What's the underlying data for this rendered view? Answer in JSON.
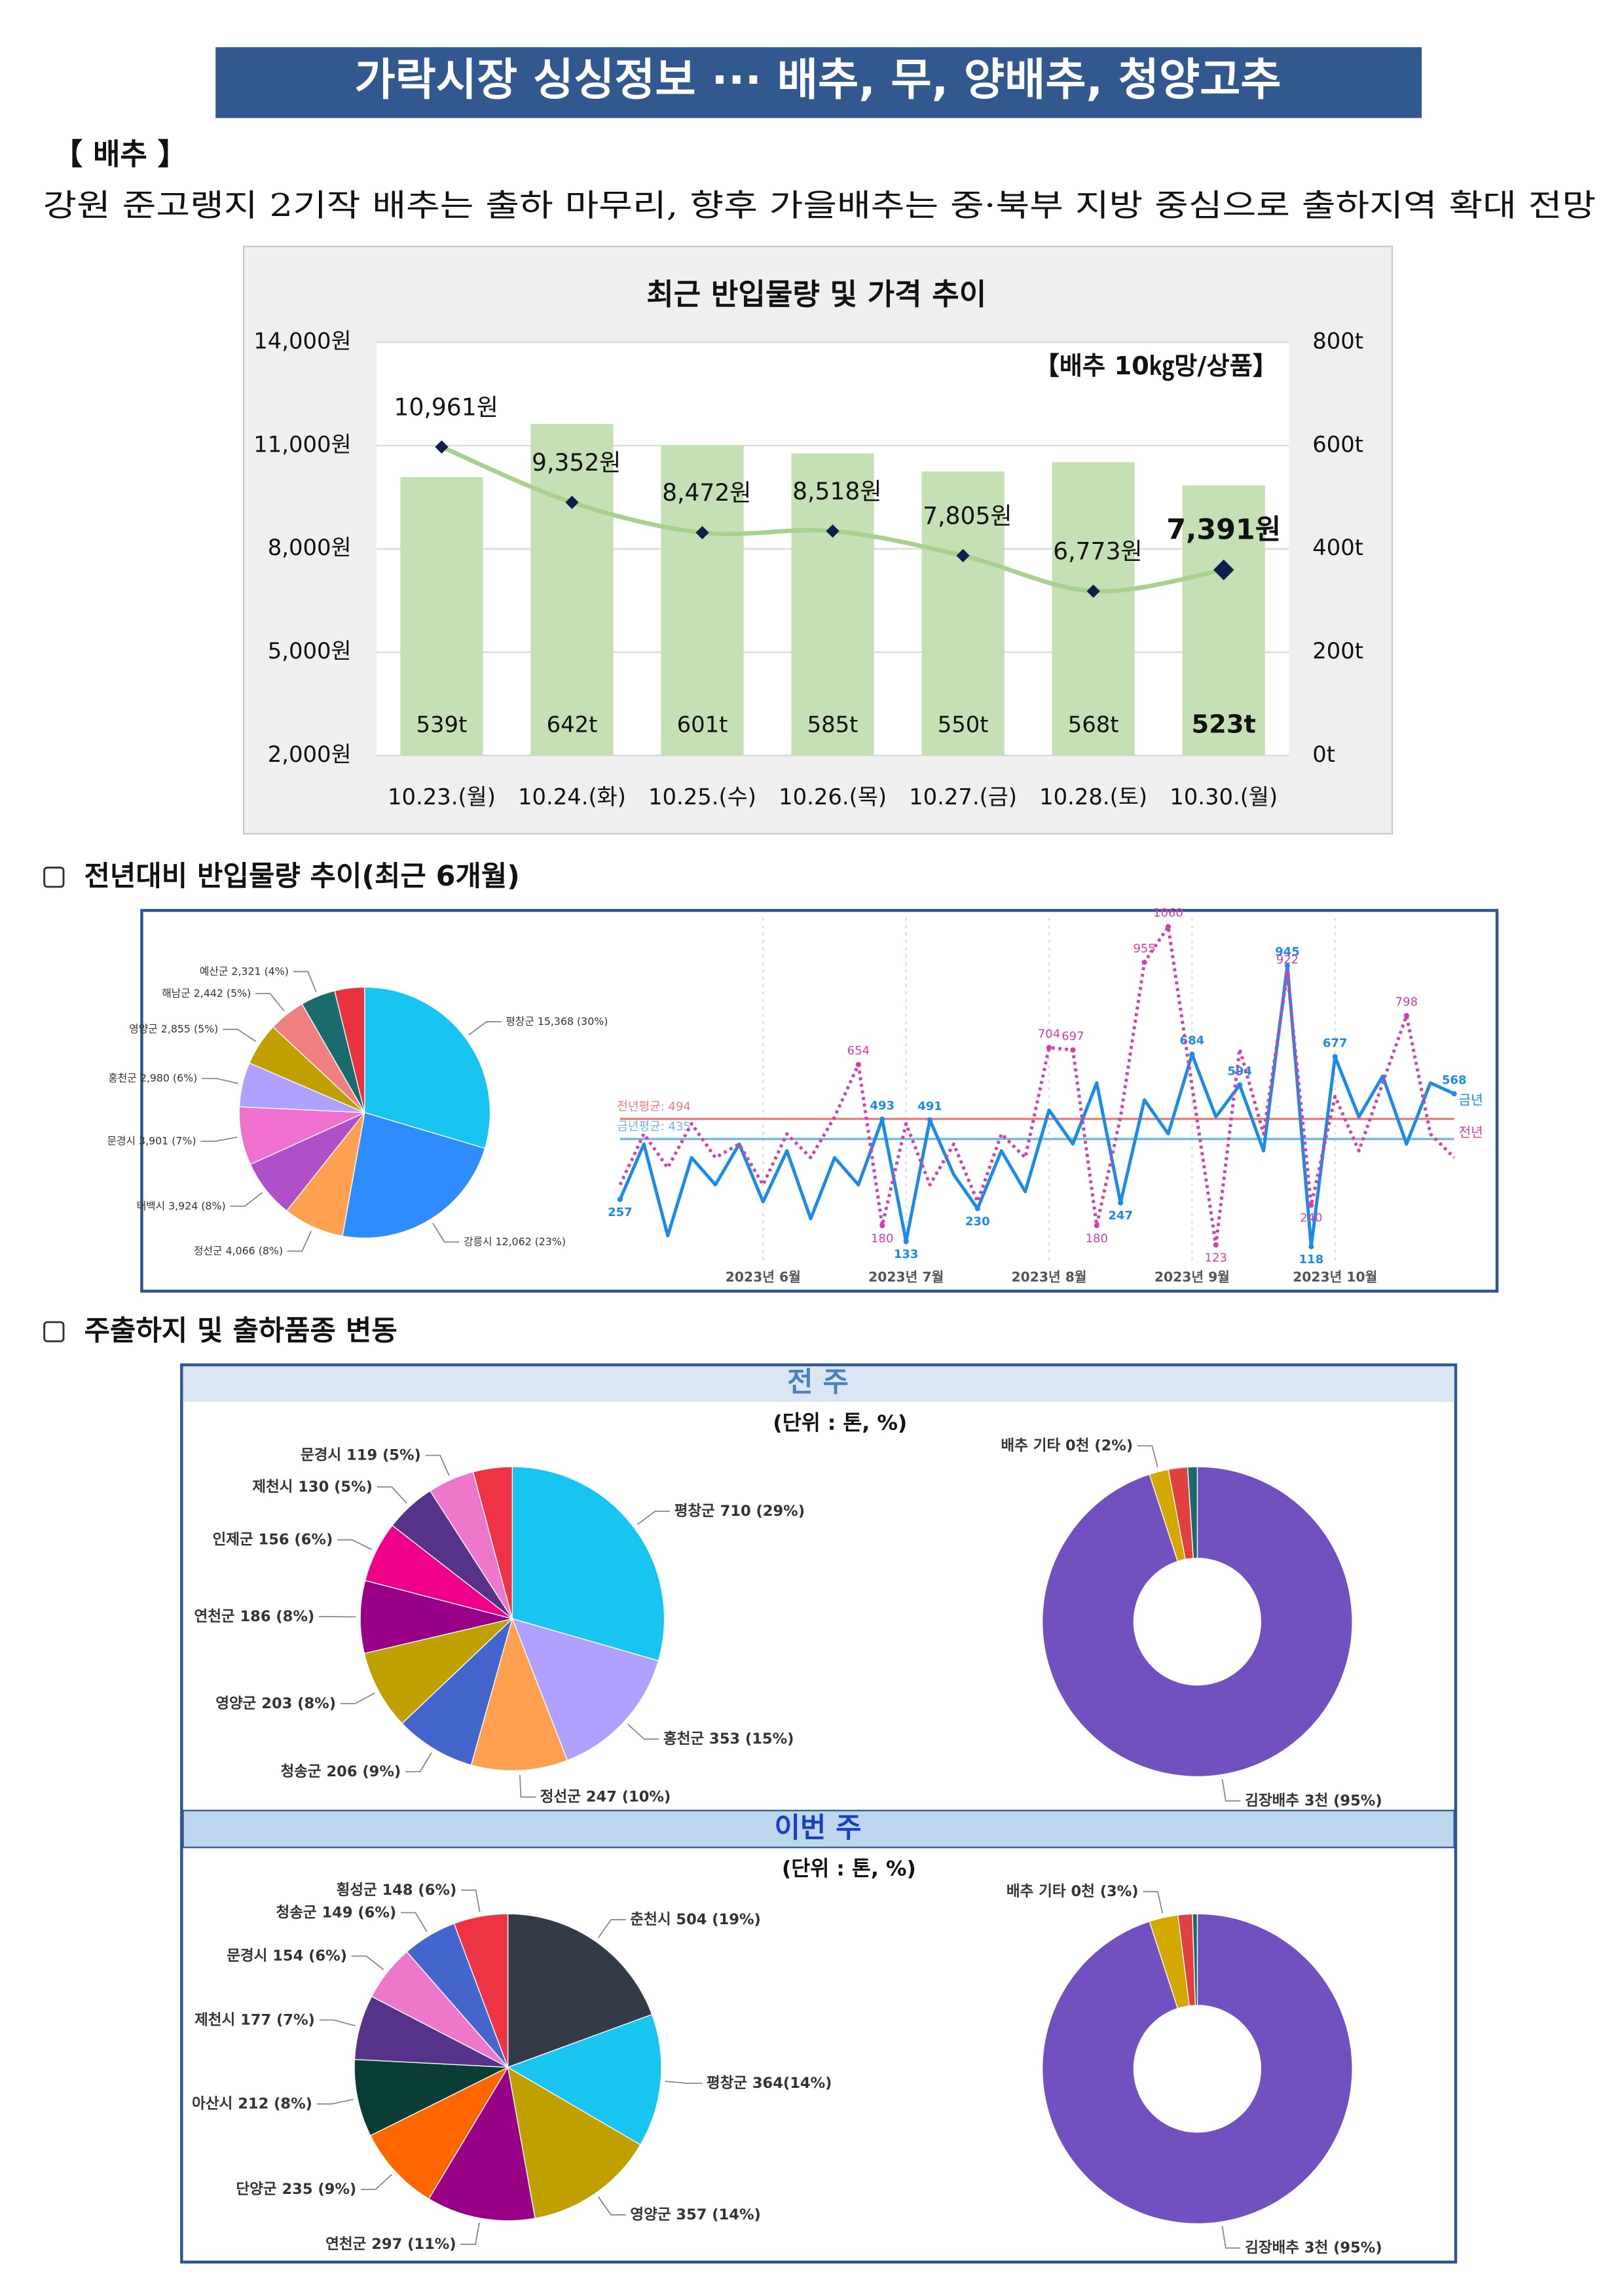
{
  "header": {
    "title": "가락시장 싱싱정보 ··· 배추, 무, 양배추, 청양고추"
  },
  "section": {
    "heading": "【 배추 】",
    "summary": "강원 준고랭지 2기작 배추는 출하 마무리, 향후 가을배추는 중·북부 지방 중심으로 출하지역 확대 전망"
  },
  "subsections": [
    "전년대비 반입물량 추이(최근 6개월)",
    "주출하지 및 출하품종 변동"
  ],
  "panels": [
    {
      "title": "전 주",
      "unit": "(단위 : 톤, %)"
    },
    {
      "title": "이번 주",
      "unit": "(단위 : 톤, %)"
    }
  ],
  "chart_data": [
    {
      "type": "bar_line",
      "title": "최근 반입물량 및 가격 추이",
      "annotation": "【배추 10㎏망/상품】",
      "categories": [
        "10.23.(월)",
        "10.24.(화)",
        "10.25.(수)",
        "10.26.(목)",
        "10.27.(금)",
        "10.28.(토)",
        "10.30.(월)"
      ],
      "series": [
        {
          "type": "bar",
          "axis": "y2",
          "color": "#c5e0b4",
          "values": [
            539,
            642,
            601,
            585,
            550,
            568,
            523
          ],
          "value_labels": [
            "539t",
            "642t",
            "601t",
            "585t",
            "550t",
            "568t",
            "523t"
          ]
        },
        {
          "type": "line",
          "color": "#a9d18e",
          "marker_color": "#0d1f4a",
          "values": [
            10961,
            9352,
            8472,
            8518,
            7805,
            6773,
            7391
          ],
          "value_labels": [
            "10,961원",
            "9,352원",
            "8,472원",
            "8,518원",
            "7,805원",
            "6,773원",
            "7,391원"
          ]
        }
      ],
      "ylim": [
        2000,
        14000
      ],
      "yticks": [
        {
          "value": 2000,
          "label": "2,000원"
        },
        {
          "value": 5000,
          "label": "5,000원"
        },
        {
          "value": 8000,
          "label": "8,000원"
        },
        {
          "value": 11000,
          "label": "11,000원"
        },
        {
          "value": 14000,
          "label": "14,000원"
        }
      ],
      "y2lim": [
        0,
        800
      ],
      "y2ticks": [
        {
          "value": 0,
          "label": "0t"
        },
        {
          "value": 200,
          "label": "200t"
        },
        {
          "value": 400,
          "label": "400t"
        },
        {
          "value": 600,
          "label": "600t"
        },
        {
          "value": 800,
          "label": "800t"
        }
      ],
      "grid": true
    },
    {
      "type": "pie",
      "categories": [
        "평창군",
        "강릉시",
        "정선군",
        "태백시",
        "문경시",
        "홍천군",
        "영양군",
        "해남군",
        "예산군",
        null
      ],
      "values": [
        15368,
        12062,
        4066,
        3924,
        3901,
        2980,
        2855,
        2442,
        2321,
        2000
      ],
      "value_labels": [
        "15,368 (30%)",
        "12,062 (23%)",
        "4,066 (8%)",
        "3,924 (8%)",
        "3,901 (7%)",
        "2,980 (6%)",
        "2,855 (5%)",
        "2,442 (5%)",
        "2,321 (4%)",
        null
      ],
      "colors": [
        "#18c4f0",
        "#2f8cff",
        "#ff9f50",
        "#b050c8",
        "#f070d0",
        "#b0a0ff",
        "#c0a000",
        "#f08080",
        "#1a6b6b",
        "#e8333f"
      ]
    },
    {
      "type": "line",
      "categories": [
        null,
        null,
        null,
        null,
        null,
        null,
        "2023년 6월",
        null,
        null,
        null,
        null,
        null,
        "2023년 7월",
        null,
        null,
        null,
        null,
        null,
        "2023년 8월",
        null,
        null,
        null,
        null,
        null,
        "2023년 9월",
        null,
        null,
        null,
        null,
        null,
        "2023년 10월",
        null,
        null,
        null,
        null,
        null
      ],
      "series": [
        {
          "name": "금년",
          "color": "#1a8be8",
          "dash": false,
          "values": [
            257,
            420,
            150,
            380,
            300,
            420,
            250,
            400,
            200,
            380,
            300,
            493,
            133,
            491,
            330,
            230,
            400,
            280,
            520,
            420,
            600,
            247,
            550,
            450,
            684,
            500,
            594,
            400,
            945,
            118,
            677,
            500,
            620,
            420,
            600,
            568
          ],
          "value_labels": [
            "257",
            null,
            null,
            null,
            null,
            null,
            null,
            null,
            null,
            null,
            null,
            "493",
            "133",
            "491",
            null,
            "230",
            null,
            null,
            null,
            null,
            null,
            "247",
            null,
            null,
            "684",
            null,
            "594",
            null,
            "945",
            "118",
            "677",
            null,
            null,
            null,
            null,
            "568"
          ]
        },
        {
          "name": "전년",
          "color": "#d63fa8",
          "dash": true,
          "values": [
            300,
            450,
            350,
            480,
            380,
            420,
            300,
            450,
            380,
            500,
            654,
            180,
            480,
            300,
            420,
            250,
            450,
            380,
            704,
            697,
            180,
            500,
            955,
            1060,
            590,
            123,
            700,
            450,
            922,
            240,
            560,
            400,
            600,
            798,
            450,
            380
          ],
          "value_labels": [
            null,
            null,
            null,
            null,
            null,
            null,
            null,
            null,
            null,
            null,
            "654",
            "180",
            null,
            null,
            null,
            null,
            null,
            null,
            "704",
            "697",
            "180",
            null,
            "955",
            "1060",
            null,
            "123",
            null,
            null,
            "922",
            "240",
            null,
            null,
            null,
            "798",
            null,
            null
          ]
        }
      ],
      "references": [
        {
          "label": "전년평균: 494",
          "value": 494,
          "color": "#f07c7c"
        },
        {
          "label": "금년평균: 435",
          "value": 435,
          "color": "#6fb6f0"
        }
      ]
    },
    {
      "type": "pie",
      "categories": [
        "평창군",
        "홍천군",
        "정선군",
        "청송군",
        "영양군",
        "연천군",
        "인제군",
        "제천시",
        "문경시",
        null
      ],
      "values": [
        710,
        353,
        247,
        206,
        203,
        186,
        156,
        130,
        119,
        100
      ],
      "value_labels": [
        "710 (29%)",
        "353 (15%)",
        "247 (10%)",
        "206 (9%)",
        "203 (8%)",
        "186 (8%)",
        "156 (6%)",
        "130 (5%)",
        "119 (5%)",
        null
      ],
      "colors": [
        "#18c4f0",
        "#b0a0ff",
        "#ff9f50",
        "#4466cc",
        "#c0a000",
        "#990088",
        "#ee0088",
        "#553388",
        "#ee77cc",
        "#ee3344"
      ]
    },
    {
      "type": "donut",
      "categories": [
        "김장배추",
        "배추 기타",
        null,
        null
      ],
      "values": [
        95,
        2,
        2,
        1
      ],
      "value_labels": [
        "3천 (95%)",
        "0천 (2%)",
        null,
        null
      ],
      "colors": [
        "#7350c0",
        "#d4a800",
        "#e04040",
        "#1a6b6b"
      ]
    },
    {
      "type": "pie",
      "categories": [
        "춘천시",
        "평창군",
        "영양군",
        "연천군",
        "단양군",
        "아산시",
        "제천시",
        "문경시",
        "청송군",
        "횡성군"
      ],
      "values": [
        504,
        364,
        357,
        297,
        235,
        212,
        177,
        154,
        149,
        148
      ],
      "value_labels": [
        "504 (19%)",
        "364(14%)",
        "357 (14%)",
        "297 (11%)",
        "235 (9%)",
        "212 (8%)",
        "177 (7%)",
        "154 (6%)",
        "149 (6%)",
        "148 (6%)"
      ],
      "colors": [
        "#333a48",
        "#18c4f0",
        "#c0a000",
        "#990088",
        "#ff6600",
        "#0a3d35",
        "#553388",
        "#ee77cc",
        "#4466cc",
        "#ee3344"
      ]
    },
    {
      "type": "donut",
      "categories": [
        "김장배추",
        "배추 기타",
        null,
        null
      ],
      "values": [
        95,
        3,
        1.5,
        0.5
      ],
      "value_labels": [
        "3천 (95%)",
        "0천 (3%)",
        null,
        null
      ],
      "colors": [
        "#7350c0",
        "#d4a800",
        "#e04040",
        "#1a6b6b"
      ]
    }
  ]
}
